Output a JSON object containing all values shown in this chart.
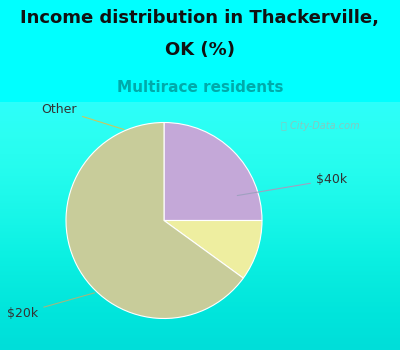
{
  "title_line1": "Income distribution in Thackerville,",
  "title_line2": "OK (%)",
  "subtitle": "Multirace residents",
  "title_fontsize": 13,
  "subtitle_fontsize": 11,
  "title_color": "#111111",
  "subtitle_color": "#00aaaa",
  "bg_color": "#00ffff",
  "chart_bg_color_tl": "#e0f5ee",
  "chart_bg_color_br": "#c8e8d8",
  "pie_values": [
    25,
    10,
    65
  ],
  "pie_colors": [
    "#c4a8d8",
    "#eeeea0",
    "#c8cc9a"
  ],
  "pie_labels": [
    "$40k",
    "Other",
    "$20k"
  ],
  "start_angle": 90,
  "watermark": "City-Data.com"
}
